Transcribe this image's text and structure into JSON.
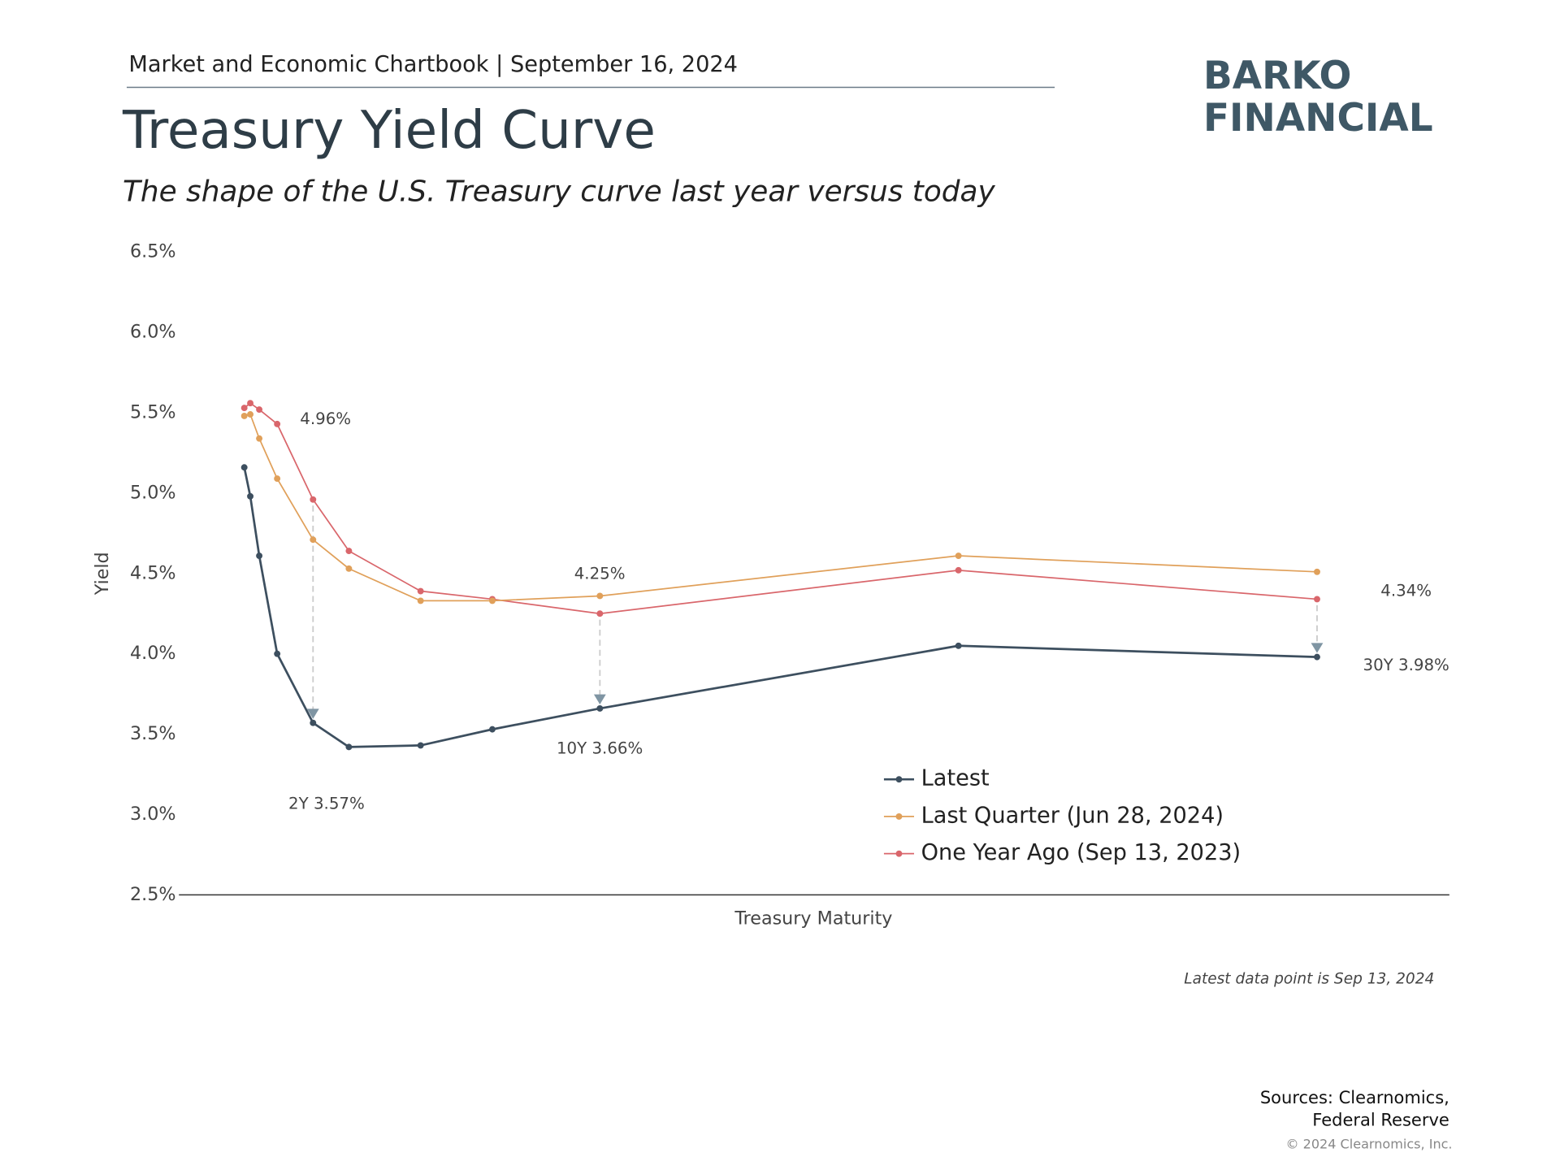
{
  "header": "Market and Economic Chartbook | September 16, 2024",
  "logo": {
    "line1": "BARKO",
    "line2": "FINANCIAL"
  },
  "chart_data": {
    "type": "line",
    "title": "Treasury Yield Curve",
    "subtitle": "The shape of the U.S. Treasury curve last year versus today",
    "y_label": "Yield",
    "x_label": "Treasury Maturity",
    "x": [
      0.083,
      0.25,
      0.5,
      1,
      2,
      3,
      5,
      7,
      10,
      20,
      30
    ],
    "xlim": [
      -1.74,
      33.69
    ],
    "ylim": [
      2.5,
      6.5
    ],
    "yticks": [
      {
        "value": 2.5,
        "label": "2.5%"
      },
      {
        "value": 3.0,
        "label": "3.0%"
      },
      {
        "value": 3.5,
        "label": "3.5%"
      },
      {
        "value": 4.0,
        "label": "4.0%"
      },
      {
        "value": 4.5,
        "label": "4.5%"
      },
      {
        "value": 5.0,
        "label": "5.0%"
      },
      {
        "value": 5.5,
        "label": "5.5%"
      },
      {
        "value": 6.0,
        "label": "6.0%"
      },
      {
        "value": 6.5,
        "label": "6.5%"
      }
    ],
    "grid": false,
    "series": [
      {
        "name": "Latest",
        "color": "#3d4f5f",
        "values": [
          5.16,
          4.98,
          4.61,
          4.0,
          3.57,
          3.42,
          3.43,
          3.53,
          3.66,
          4.05,
          3.98
        ]
      },
      {
        "name": "Last Quarter (Jun 28, 2024)",
        "color": "#e0a05a",
        "values": [
          5.48,
          5.49,
          5.34,
          5.09,
          4.71,
          4.53,
          4.33,
          4.33,
          4.36,
          4.61,
          4.51
        ]
      },
      {
        "name": "One Year Ago (Sep 13, 2023)",
        "color": "#d9666b",
        "values": [
          5.53,
          5.56,
          5.52,
          5.43,
          4.96,
          4.64,
          4.39,
          4.34,
          4.25,
          4.52,
          4.34
        ]
      }
    ],
    "annotations": [
      {
        "top": "4.96%",
        "bottom": "2Y 3.57%"
      },
      {
        "top": "4.25%",
        "bottom": "10Y 3.66%"
      },
      {
        "top": "4.34%",
        "bottom": "30Y 3.98%"
      }
    ],
    "note": "Latest data point is Sep 13, 2024"
  },
  "footer": {
    "sources1": "Sources: Clearnomics,",
    "sources2": "Federal Reserve",
    "copyright": "© 2024 Clearnomics, Inc."
  }
}
